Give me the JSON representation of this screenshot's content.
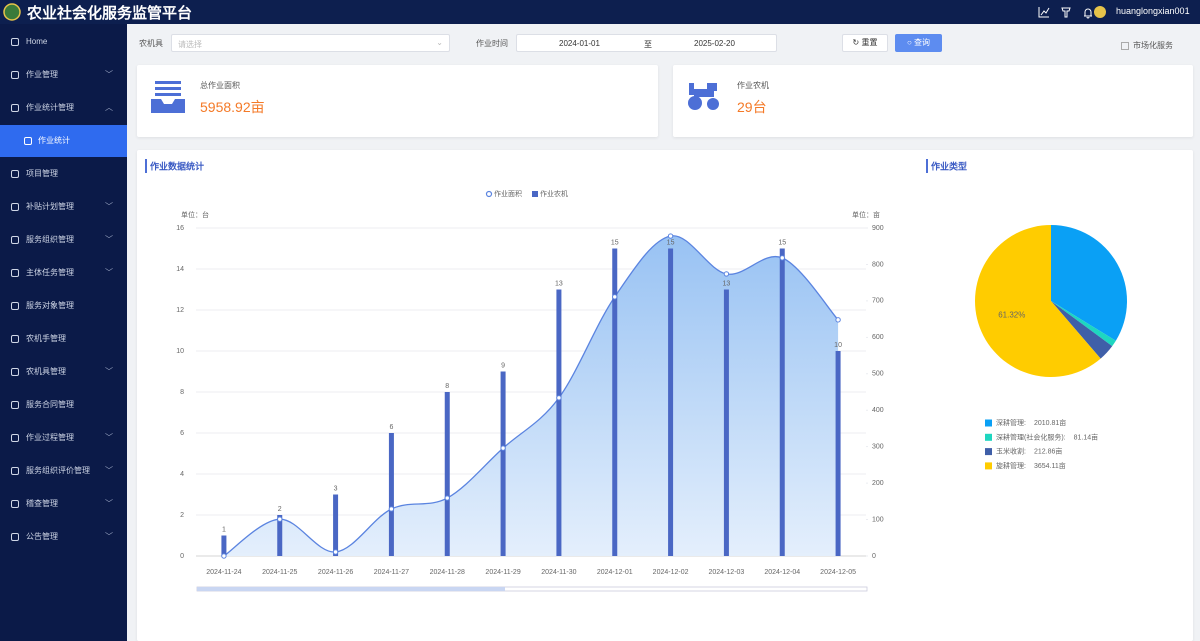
{
  "header": {
    "title": "农业社会化服务监管平台",
    "username": "huanglongxian001"
  },
  "sidebar": {
    "items": [
      {
        "label": "Home"
      },
      {
        "label": "作业管理",
        "arrow": "down"
      },
      {
        "label": "作业统计管理",
        "arrow": "up"
      },
      {
        "label": "作业统计",
        "active": true
      },
      {
        "label": "项目管理"
      },
      {
        "label": "补贴计划管理",
        "arrow": "down"
      },
      {
        "label": "服务组织管理",
        "arrow": "down"
      },
      {
        "label": "主体任务管理",
        "arrow": "down"
      },
      {
        "label": "服务对象管理"
      },
      {
        "label": "农机手管理"
      },
      {
        "label": "农机具管理",
        "arrow": "down"
      },
      {
        "label": "服务合同管理"
      },
      {
        "label": "作业过程管理",
        "arrow": "down"
      },
      {
        "label": "服务组织评价管理",
        "arrow": "down"
      },
      {
        "label": "稽查管理",
        "arrow": "down"
      },
      {
        "label": "公告管理",
        "arrow": "down"
      }
    ]
  },
  "filters": {
    "machine_label": "农机具",
    "machine_placeholder": "请选择",
    "time_label": "作业时间",
    "start_date": "2024-01-01",
    "separator": "至",
    "end_date": "2025-02-20",
    "reset": "重置",
    "query": "查询",
    "market_checkbox": "市场化服务"
  },
  "stats": [
    {
      "label": "总作业面积",
      "value": "5958.92亩"
    },
    {
      "label": "作业农机",
      "value": "29台"
    }
  ],
  "chart_data": [
    {
      "type": "bar-line",
      "title": "作业数据统计",
      "categories": [
        "2024-11-24",
        "2024-11-25",
        "2024-11-26",
        "2024-11-27",
        "2024-11-28",
        "2024-11-29",
        "2024-11-30",
        "2024-12-01",
        "2024-12-02",
        "2024-12-03",
        "2024-12-04",
        "2024-12-05"
      ],
      "series": [
        {
          "name": "作业面积",
          "type": "line",
          "axis": "y2",
          "color": "#5b84e0",
          "values": [
            0,
            101,
            11,
            129,
            159,
            296,
            434,
            711,
            878,
            774,
            818,
            648
          ]
        },
        {
          "name": "作业农机",
          "type": "bar",
          "color": "#4a67c4",
          "values": [
            1,
            2,
            3,
            6,
            8,
            9,
            13,
            15,
            15,
            13,
            15,
            10
          ]
        }
      ],
      "ylim": [
        0,
        16
      ],
      "yticks": [
        0,
        2,
        4,
        6,
        8,
        10,
        12,
        14,
        16
      ],
      "y2lim": [
        0,
        900
      ],
      "y2ticks": [
        0,
        100,
        200,
        300,
        400,
        500,
        600,
        700,
        800,
        900
      ],
      "y_unit_label": "单位：台",
      "y2_unit_label": "单位：亩",
      "grid": true,
      "legend": "top"
    },
    {
      "type": "pie",
      "title": "作业类型",
      "categories": [
        "深耕管理:",
        "深耕管理(社会化服务):",
        "玉米收割:",
        "旋耕管理:"
      ],
      "values": [
        2010.81,
        81.14,
        212.86,
        3654.11
      ],
      "value_labels": [
        "2010.81亩",
        "81.14亩",
        "212.86亩",
        "3654.11亩"
      ],
      "data_labels": [
        null,
        null,
        null,
        "61.32%"
      ],
      "colors": [
        "#0aa0f5",
        "#1ed6c0",
        "#3f5fa8",
        "#ffcc00"
      ],
      "legend": "bottom"
    }
  ]
}
